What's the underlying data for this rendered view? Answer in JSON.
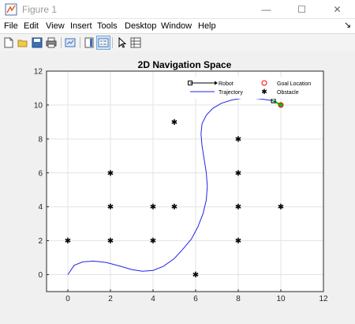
{
  "window": {
    "title": "Figure 1",
    "minimize_glyph": "—",
    "maximize_glyph": "☐",
    "close_glyph": "✕"
  },
  "menu": {
    "items": [
      "File",
      "Edit",
      "View",
      "Insert",
      "Tools",
      "Desktop",
      "Window",
      "Help"
    ],
    "dock_arrow": "↘"
  },
  "toolbar": {
    "icons": [
      "new-figure-icon",
      "open-file-icon",
      "save-icon",
      "print-icon",
      "link-plot-icon",
      "insert-colorbar-icon",
      "insert-legend-icon",
      "edit-plot-icon",
      "property-inspector-icon"
    ]
  },
  "colors": {
    "trajectory": "#2323e6",
    "goal": "#ff0000",
    "goal_fill": "#00c000",
    "heading": "#00c000",
    "obstacle": "#000000"
  },
  "chart_data": {
    "type": "line",
    "title": "2D Navigation Space",
    "xlim": [
      -1,
      12
    ],
    "ylim": [
      -1,
      12
    ],
    "xticks": [
      0,
      2,
      4,
      6,
      8,
      10,
      12
    ],
    "yticks": [
      0,
      2,
      4,
      6,
      8,
      10,
      12
    ],
    "grid": true,
    "legend_position": "top-right",
    "legend": {
      "robot": "Robot",
      "trajectory": "Trajectory",
      "goal": "Goal Location",
      "obstacle": "Obstacle"
    },
    "obstacles": [
      [
        0,
        2
      ],
      [
        2,
        2
      ],
      [
        2,
        4
      ],
      [
        2,
        6
      ],
      [
        4,
        2
      ],
      [
        4,
        4
      ],
      [
        5,
        4
      ],
      [
        5,
        9
      ],
      [
        6,
        0
      ],
      [
        8,
        2
      ],
      [
        8,
        4
      ],
      [
        8,
        6
      ],
      [
        8,
        8
      ],
      [
        10,
        4
      ]
    ],
    "goal": [
      10,
      10
    ],
    "robot": [
      9.65,
      10.25
    ],
    "trajectory": {
      "x": [
        0,
        0.3,
        0.7,
        1.2,
        1.8,
        2.4,
        3.0,
        3.5,
        4.0,
        4.5,
        5.0,
        5.4,
        5.8,
        6.1,
        6.35,
        6.5,
        6.55,
        6.5,
        6.4,
        6.3,
        6.25,
        6.3,
        6.5,
        6.8,
        7.2,
        7.7,
        8.2,
        8.7,
        9.1,
        9.4,
        9.65
      ],
      "y": [
        0,
        0.55,
        0.75,
        0.8,
        0.72,
        0.52,
        0.3,
        0.2,
        0.25,
        0.5,
        0.95,
        1.5,
        2.1,
        2.8,
        3.6,
        4.4,
        5.2,
        6.0,
        6.8,
        7.6,
        8.3,
        8.9,
        9.4,
        9.8,
        10.1,
        10.3,
        10.4,
        10.4,
        10.35,
        10.3,
        10.25
      ]
    }
  }
}
